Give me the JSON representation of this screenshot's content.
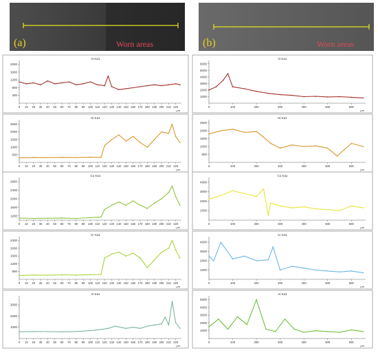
{
  "panels": [
    {
      "tag": "(a)",
      "worn_label": "Worn areas"
    },
    {
      "tag": "(b)",
      "worn_label": "Worn areas"
    }
  ],
  "colors": {
    "O": "#a0302a",
    "Ni": "#d6962a",
    "Co": "#8cc43a",
    "Co_b": "#e8e63a",
    "Cr": "#a8d43a",
    "Cr_b": "#6ab6e6",
    "Al": "#7ab69a",
    "Al_b": "#6bbf3a",
    "scan_line": "#e8e21f"
  },
  "chart_data": [
    {
      "type": "line",
      "panel": "a",
      "title": "O Ka1",
      "xunit": "μm",
      "xticks": [
        0,
        10,
        20,
        30,
        40,
        50,
        60,
        70,
        80,
        90,
        100,
        110,
        120,
        130,
        140,
        150,
        160,
        170,
        180,
        190,
        200,
        210,
        220
      ],
      "xlim": [
        0,
        228
      ],
      "yticks": [
        400,
        800,
        1200,
        1600,
        2000
      ],
      "ylim": [
        0,
        2200
      ],
      "x": [
        0,
        10,
        20,
        30,
        40,
        50,
        60,
        70,
        80,
        90,
        100,
        110,
        120,
        125,
        130,
        140,
        150,
        160,
        170,
        180,
        190,
        200,
        210,
        220,
        226
      ],
      "y": [
        1100,
        1000,
        1050,
        950,
        1150,
        1000,
        1050,
        1100,
        950,
        1000,
        1100,
        950,
        900,
        1400,
        850,
        700,
        750,
        800,
        850,
        900,
        950,
        900,
        950,
        1000,
        950
      ],
      "color_key": "O"
    },
    {
      "type": "line",
      "panel": "b",
      "title": "O Ka1",
      "xunit": "μm",
      "xticks": [
        0,
        100,
        200,
        300,
        400,
        500,
        600
      ],
      "xlim": [
        0,
        660
      ],
      "yticks": [
        1000,
        2000,
        3000,
        4000,
        5000,
        6000
      ],
      "ylim": [
        0,
        6500
      ],
      "x": [
        0,
        30,
        60,
        80,
        100,
        150,
        200,
        250,
        300,
        350,
        400,
        450,
        500,
        550,
        600,
        650
      ],
      "y": [
        2000,
        2500,
        3500,
        4500,
        2500,
        2200,
        1800,
        1500,
        1300,
        1200,
        1000,
        1050,
        950,
        1000,
        900,
        800
      ],
      "color_key": "O"
    },
    {
      "type": "line",
      "panel": "a",
      "title": "Ni Ka1",
      "xunit": "μm",
      "xticks": [
        0,
        10,
        20,
        30,
        40,
        50,
        60,
        70,
        80,
        90,
        100,
        110,
        120,
        130,
        140,
        150,
        160,
        170,
        180,
        190,
        200,
        210,
        220
      ],
      "xlim": [
        0,
        228
      ],
      "yticks": [
        500,
        1000,
        1500,
        2000,
        2500
      ],
      "ylim": [
        0,
        2800
      ],
      "x": [
        0,
        20,
        40,
        60,
        80,
        100,
        115,
        120,
        130,
        140,
        150,
        160,
        170,
        180,
        190,
        200,
        210,
        215,
        220,
        226
      ],
      "y": [
        300,
        320,
        310,
        330,
        320,
        340,
        330,
        1100,
        1500,
        1800,
        1400,
        1700,
        1300,
        1000,
        1500,
        2000,
        1900,
        2500,
        1700,
        1300
      ],
      "color_key": "Ni"
    },
    {
      "type": "line",
      "panel": "b",
      "title": "Ni Ka1",
      "xunit": "μm",
      "xticks": [
        0,
        100,
        200,
        300,
        400,
        500,
        600
      ],
      "xlim": [
        0,
        660
      ],
      "yticks": [
        500,
        1000,
        1500,
        2000,
        2500
      ],
      "ylim": [
        0,
        2700
      ],
      "x": [
        0,
        50,
        100,
        150,
        200,
        230,
        260,
        300,
        350,
        400,
        450,
        500,
        540,
        570,
        600,
        650
      ],
      "y": [
        1800,
        2000,
        2100,
        1900,
        1950,
        1600,
        1200,
        900,
        1100,
        1000,
        1050,
        900,
        400,
        800,
        1200,
        1000
      ],
      "color_key": "Ni"
    },
    {
      "type": "line",
      "panel": "a",
      "title": "Co Ka1",
      "xunit": "μm",
      "xticks": [
        0,
        10,
        20,
        30,
        40,
        50,
        60,
        70,
        80,
        90,
        100,
        110,
        120,
        130,
        140,
        150,
        160,
        170,
        180,
        190,
        200,
        210,
        220
      ],
      "xlim": [
        0,
        228
      ],
      "yticks": [
        1200,
        1600,
        2000,
        2400,
        2800
      ],
      "ylim": [
        1000,
        3000
      ],
      "x": [
        0,
        20,
        40,
        60,
        80,
        100,
        115,
        120,
        130,
        140,
        150,
        160,
        170,
        180,
        190,
        200,
        210,
        215,
        220,
        226
      ],
      "y": [
        1100,
        1080,
        1090,
        1100,
        1080,
        1120,
        1150,
        1500,
        1700,
        1850,
        1700,
        1900,
        1700,
        1550,
        1800,
        2000,
        2300,
        2600,
        2100,
        1700
      ],
      "color_key": "Co"
    },
    {
      "type": "line",
      "panel": "b",
      "title": "Co Ka1",
      "xunit": "μm",
      "xticks": [
        0,
        100,
        200,
        300,
        400,
        500,
        600
      ],
      "xlim": [
        0,
        660
      ],
      "yticks": [
        1000,
        2000,
        3000,
        4000
      ],
      "ylim": [
        0,
        4500
      ],
      "x": [
        0,
        50,
        100,
        150,
        200,
        230,
        250,
        260,
        300,
        350,
        400,
        450,
        500,
        550,
        600,
        650
      ],
      "y": [
        2200,
        2600,
        3100,
        2800,
        2500,
        3300,
        500,
        1800,
        1500,
        1300,
        1400,
        1200,
        1100,
        1000,
        1500,
        1300
      ],
      "color_key": "Co_b"
    },
    {
      "type": "line",
      "panel": "a",
      "title": "Cr Ka1",
      "xunit": "μm",
      "xticks": [
        0,
        10,
        20,
        30,
        40,
        50,
        60,
        70,
        80,
        90,
        100,
        110,
        120,
        130,
        140,
        150,
        160,
        170,
        180,
        190,
        200,
        210,
        220
      ],
      "xlim": [
        0,
        228
      ],
      "yticks": [
        800,
        1200,
        1600,
        2000,
        2400
      ],
      "ylim": [
        400,
        2600
      ],
      "x": [
        0,
        20,
        40,
        60,
        80,
        100,
        115,
        120,
        130,
        140,
        150,
        160,
        170,
        180,
        190,
        200,
        210,
        215,
        220,
        226
      ],
      "y": [
        600,
        620,
        610,
        630,
        620,
        640,
        650,
        1500,
        1700,
        1800,
        1600,
        1750,
        1500,
        1000,
        1400,
        1800,
        2000,
        2400,
        1900,
        1500
      ],
      "color_key": "Cr"
    },
    {
      "type": "line",
      "panel": "b",
      "title": "Cr Ka1",
      "xunit": "μm",
      "xticks": [
        0,
        100,
        200,
        300,
        400,
        500,
        600
      ],
      "xlim": [
        0,
        660
      ],
      "yticks": [
        1000,
        2000,
        3000,
        4000
      ],
      "ylim": [
        0,
        4600
      ],
      "x": [
        0,
        20,
        50,
        100,
        150,
        200,
        250,
        270,
        300,
        350,
        400,
        450,
        500,
        550,
        600,
        650
      ],
      "y": [
        2500,
        2000,
        4000,
        2200,
        2500,
        2000,
        2100,
        3500,
        1000,
        1400,
        1200,
        1000,
        900,
        800,
        900,
        700
      ],
      "color_key": "Cr_b"
    },
    {
      "type": "line",
      "panel": "a",
      "title": "Al Ka1",
      "xunit": "μm",
      "xticks": [
        0,
        10,
        20,
        30,
        40,
        50,
        60,
        70,
        80,
        90,
        100,
        110,
        120,
        130,
        140,
        150,
        160,
        170,
        180,
        190,
        200,
        210,
        220
      ],
      "xlim": [
        0,
        228
      ],
      "yticks": [
        1000,
        2000,
        3000
      ],
      "ylim": [
        0,
        3800
      ],
      "x": [
        0,
        20,
        40,
        60,
        80,
        100,
        115,
        125,
        135,
        150,
        160,
        170,
        180,
        190,
        200,
        205,
        210,
        215,
        220,
        226
      ],
      "y": [
        600,
        620,
        610,
        600,
        620,
        700,
        800,
        900,
        1100,
        900,
        1000,
        900,
        1100,
        1200,
        1300,
        1900,
        1200,
        3300,
        1400,
        900
      ],
      "color_key": "Al"
    },
    {
      "type": "line",
      "panel": "b",
      "title": "Al Ka1",
      "xunit": "μm",
      "xticks": [
        0,
        100,
        200,
        300,
        400,
        500,
        600
      ],
      "xlim": [
        0,
        660
      ],
      "yticks": [
        1000,
        2000,
        3000,
        4000,
        5000
      ],
      "ylim": [
        0,
        5500
      ],
      "x": [
        0,
        40,
        80,
        120,
        160,
        200,
        240,
        280,
        320,
        360,
        400,
        450,
        500,
        550,
        600,
        650
      ],
      "y": [
        1500,
        2500,
        1200,
        2800,
        1800,
        5000,
        1200,
        900,
        2500,
        1200,
        800,
        1000,
        900,
        800,
        1100,
        900
      ],
      "color_key": "Al_b"
    }
  ]
}
